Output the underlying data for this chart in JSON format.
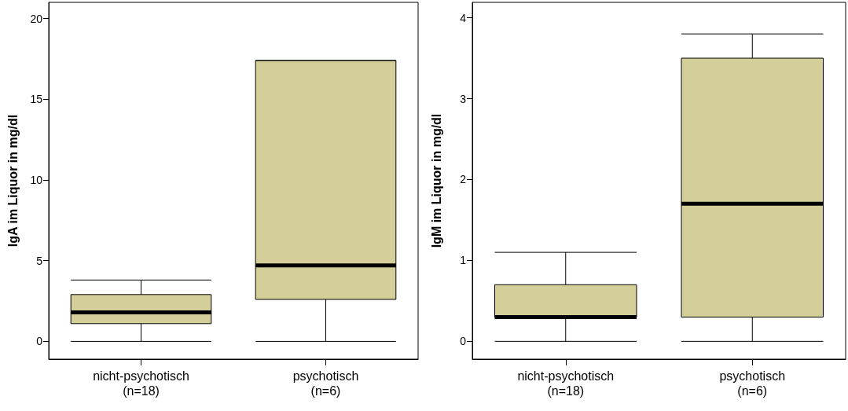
{
  "chart_data": [
    {
      "type": "box",
      "ylabel": "IgA im Liquor in mg/dl",
      "categories": [
        "nicht-psychotisch\n(n=18)",
        "psychotisch\n(n=6)"
      ],
      "color": "#d4cf99",
      "ylim": [
        -1.1,
        21
      ],
      "yticks": [
        0,
        5,
        10,
        15,
        20
      ],
      "boxes": [
        {
          "low": 0,
          "q1": 1.1,
          "median": 1.8,
          "q3": 2.9,
          "high": 3.8
        },
        {
          "low": 0,
          "q1": 2.6,
          "median": 4.7,
          "q3": 17.4,
          "high": 17.4
        }
      ]
    },
    {
      "type": "box",
      "ylabel": "IgM im Liquor in mg/dl",
      "categories": [
        "nicht-psychotisch\n(n=18)",
        "psychotisch\n(n=6)"
      ],
      "color": "#d4cf99",
      "ylim": [
        -0.22,
        4.19
      ],
      "yticks": [
        0,
        1,
        2,
        3,
        4
      ],
      "boxes": [
        {
          "low": 0,
          "q1": 0.3,
          "median": 0.3,
          "q3": 0.7,
          "high": 1.1
        },
        {
          "low": 0,
          "q1": 0.3,
          "median": 1.7,
          "q3": 3.5,
          "high": 3.8
        }
      ]
    }
  ]
}
